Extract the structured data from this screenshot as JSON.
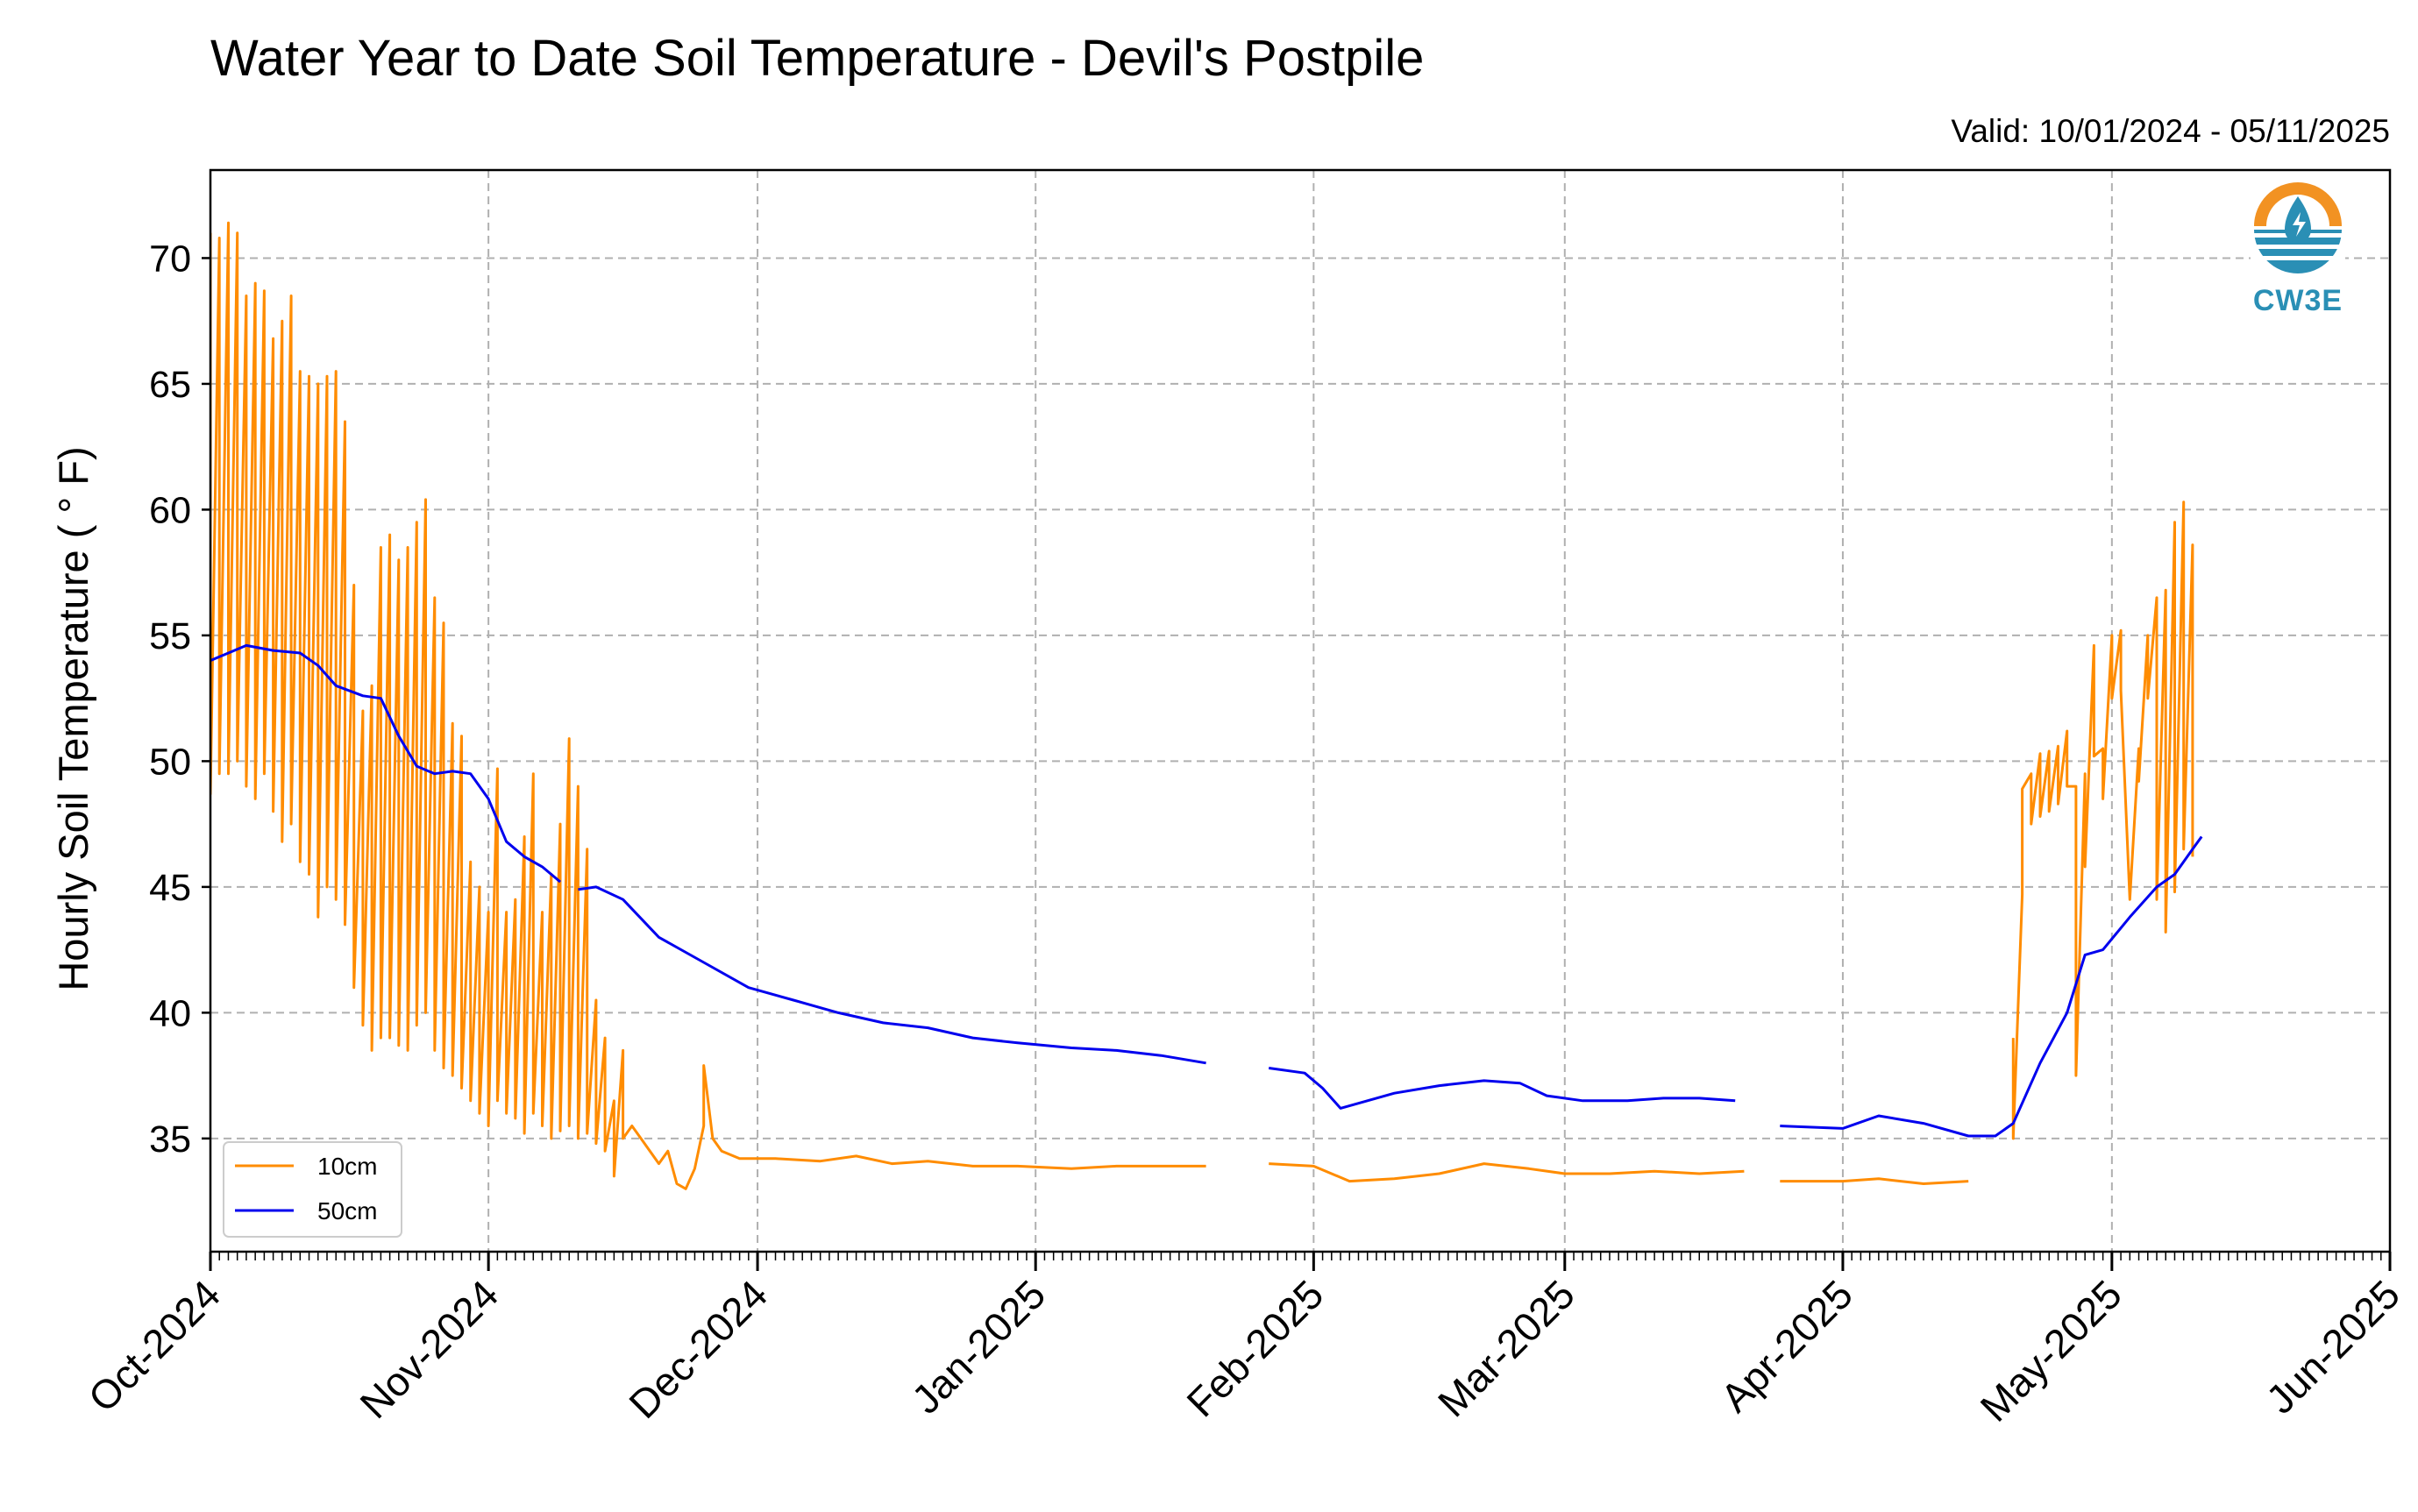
{
  "chart_data": {
    "type": "line",
    "title": "Water Year to Date Soil Temperature - Devil's Postpile",
    "subtitle": "Valid: 10/01/2024 - 05/11/2025",
    "ylabel": "Hourly Soil Temperature ( ° F)",
    "xlabel": "",
    "ylim": [
      30.5,
      73.5
    ],
    "xlim": [
      "2024-10-01",
      "2025-06-01"
    ],
    "yticks": [
      "35",
      "40",
      "45",
      "50",
      "55",
      "60",
      "65",
      "70"
    ],
    "xticks": [
      "Oct-2024",
      "Nov-2024",
      "Dec-2024",
      "Jan-2025",
      "Feb-2025",
      "Mar-2025",
      "Apr-2025",
      "May-2025",
      "Jun-2025"
    ],
    "grid": true,
    "legend_position": "lower-left",
    "logo_text": "CW3E",
    "series": [
      {
        "name": "10cm",
        "color": "#ff8c00",
        "style": "line, strong diurnal swings in October/November, damped near freezing through winter, gap 2025-01-21 to 2025-01-26, fragmented in April, large swings resume late April",
        "points": [
          [
            "2024-10-01",
            71.0
          ],
          [
            "2024-10-01",
            48.7
          ],
          [
            "2024-10-02",
            70.8
          ],
          [
            "2024-10-02",
            49.5
          ],
          [
            "2024-10-03",
            71.4
          ],
          [
            "2024-10-03",
            49.5
          ],
          [
            "2024-10-04",
            71.0
          ],
          [
            "2024-10-04",
            50.0
          ],
          [
            "2024-10-05",
            68.5
          ],
          [
            "2024-10-05",
            49.0
          ],
          [
            "2024-10-06",
            69.0
          ],
          [
            "2024-10-06",
            48.5
          ],
          [
            "2024-10-07",
            68.7
          ],
          [
            "2024-10-07",
            49.5
          ],
          [
            "2024-10-08",
            66.8
          ],
          [
            "2024-10-08",
            48.0
          ],
          [
            "2024-10-09",
            67.5
          ],
          [
            "2024-10-09",
            46.8
          ],
          [
            "2024-10-10",
            68.5
          ],
          [
            "2024-10-10",
            47.5
          ],
          [
            "2024-10-11",
            65.5
          ],
          [
            "2024-10-11",
            46.0
          ],
          [
            "2024-10-12",
            65.3
          ],
          [
            "2024-10-12",
            45.5
          ],
          [
            "2024-10-13",
            65.0
          ],
          [
            "2024-10-13",
            43.8
          ],
          [
            "2024-10-14",
            65.3
          ],
          [
            "2024-10-14",
            45.0
          ],
          [
            "2024-10-15",
            65.5
          ],
          [
            "2024-10-15",
            44.5
          ],
          [
            "2024-10-16",
            63.5
          ],
          [
            "2024-10-16",
            43.5
          ],
          [
            "2024-10-17",
            57.0
          ],
          [
            "2024-10-17",
            41.0
          ],
          [
            "2024-10-18",
            52.0
          ],
          [
            "2024-10-18",
            39.5
          ],
          [
            "2024-10-19",
            53.0
          ],
          [
            "2024-10-19",
            38.5
          ],
          [
            "2024-10-20",
            58.5
          ],
          [
            "2024-10-20",
            39.0
          ],
          [
            "2024-10-21",
            59.0
          ],
          [
            "2024-10-21",
            39.0
          ],
          [
            "2024-10-22",
            58.0
          ],
          [
            "2024-10-22",
            38.7
          ],
          [
            "2024-10-23",
            58.5
          ],
          [
            "2024-10-23",
            38.5
          ],
          [
            "2024-10-24",
            59.5
          ],
          [
            "2024-10-24",
            39.5
          ],
          [
            "2024-10-25",
            60.4
          ],
          [
            "2024-10-25",
            40.0
          ],
          [
            "2024-10-26",
            56.5
          ],
          [
            "2024-10-26",
            38.5
          ],
          [
            "2024-10-27",
            55.5
          ],
          [
            "2024-10-27",
            37.8
          ],
          [
            "2024-10-28",
            51.5
          ],
          [
            "2024-10-28",
            37.5
          ],
          [
            "2024-10-29",
            51.0
          ],
          [
            "2024-10-29",
            37.0
          ],
          [
            "2024-10-30",
            46.0
          ],
          [
            "2024-10-30",
            36.5
          ],
          [
            "2024-10-31",
            45.0
          ],
          [
            "2024-10-31",
            36.0
          ],
          [
            "2024-11-01",
            44.0
          ],
          [
            "2024-11-01",
            35.5
          ],
          [
            "2024-11-02",
            49.7
          ],
          [
            "2024-11-02",
            36.5
          ],
          [
            "2024-11-03",
            44.0
          ],
          [
            "2024-11-03",
            36.0
          ],
          [
            "2024-11-04",
            44.5
          ],
          [
            "2024-11-04",
            35.8
          ],
          [
            "2024-11-05",
            47.0
          ],
          [
            "2024-11-05",
            35.2
          ],
          [
            "2024-11-06",
            49.5
          ],
          [
            "2024-11-06",
            36.0
          ],
          [
            "2024-11-07",
            44.0
          ],
          [
            "2024-11-07",
            35.5
          ],
          [
            "2024-11-08",
            45.5
          ],
          [
            "2024-11-08",
            35.0
          ],
          [
            "2024-11-09",
            47.5
          ],
          [
            "2024-11-09",
            35.3
          ],
          [
            "2024-11-10",
            50.9
          ],
          [
            "2024-11-10",
            35.5
          ],
          [
            "2024-11-11",
            49.0
          ],
          [
            "2024-11-11",
            35.0
          ],
          [
            "2024-11-12",
            46.5
          ],
          [
            "2024-11-12",
            35.2
          ],
          [
            "2024-11-13",
            40.5
          ],
          [
            "2024-11-13",
            34.8
          ],
          [
            "2024-11-14",
            39.0
          ],
          [
            "2024-11-14",
            34.5
          ],
          [
            "2024-11-15",
            36.5
          ],
          [
            "2024-11-15",
            33.5
          ],
          [
            "2024-11-16",
            38.5
          ],
          [
            "2024-11-16",
            35.0
          ],
          [
            "2024-11-17",
            35.5
          ],
          [
            "2024-11-18",
            35.0
          ],
          [
            "2024-11-19",
            34.5
          ],
          [
            "2024-11-20",
            34.0
          ],
          [
            "2024-11-21",
            34.5
          ],
          [
            "2024-11-22",
            33.2
          ],
          [
            "2024-11-23",
            33.0
          ],
          [
            "2024-11-24",
            33.8
          ],
          [
            "2024-11-25",
            35.5
          ],
          [
            "2024-11-25",
            37.9
          ],
          [
            "2024-11-26",
            35.0
          ],
          [
            "2024-11-27",
            34.5
          ],
          [
            "2024-11-29",
            34.2
          ],
          [
            "2024-12-03",
            34.2
          ],
          [
            "2024-12-08",
            34.1
          ],
          [
            "2024-12-12",
            34.3
          ],
          [
            "2024-12-16",
            34.0
          ],
          [
            "2024-12-20",
            34.1
          ],
          [
            "2024-12-25",
            33.9
          ],
          [
            "2024-12-30",
            33.9
          ],
          [
            "2025-01-05",
            33.8
          ],
          [
            "2025-01-10",
            33.9
          ],
          [
            "2025-01-15",
            33.9
          ],
          [
            "2025-01-20",
            33.9
          ],
          [
            "2025-01-21",
            null
          ],
          [
            "2025-01-27",
            34.0
          ],
          [
            "2025-02-01",
            33.9
          ],
          [
            "2025-02-05",
            33.3
          ],
          [
            "2025-02-10",
            33.4
          ],
          [
            "2025-02-15",
            33.6
          ],
          [
            "2025-02-20",
            34.0
          ],
          [
            "2025-02-25",
            33.8
          ],
          [
            "2025-03-01",
            33.6
          ],
          [
            "2025-03-06",
            33.6
          ],
          [
            "2025-03-11",
            33.7
          ],
          [
            "2025-03-16",
            33.6
          ],
          [
            "2025-03-21",
            33.7
          ],
          [
            "2025-03-22",
            null
          ],
          [
            "2025-03-25",
            33.3
          ],
          [
            "2025-04-01",
            33.3
          ],
          [
            "2025-04-05",
            33.4
          ],
          [
            "2025-04-10",
            33.2
          ],
          [
            "2025-04-15",
            33.3
          ],
          [
            "2025-04-17",
            null
          ],
          [
            "2025-04-20",
            39.0
          ],
          [
            "2025-04-20",
            35.0
          ],
          [
            "2025-04-21",
            44.7
          ],
          [
            "2025-04-21",
            48.9
          ],
          [
            "2025-04-22",
            49.5
          ],
          [
            "2025-04-22",
            47.5
          ],
          [
            "2025-04-23",
            50.3
          ],
          [
            "2025-04-23",
            47.8
          ],
          [
            "2025-04-24",
            50.4
          ],
          [
            "2025-04-24",
            48.0
          ],
          [
            "2025-04-25",
            50.6
          ],
          [
            "2025-04-25",
            48.3
          ],
          [
            "2025-04-26",
            51.2
          ],
          [
            "2025-04-26",
            49.0
          ],
          [
            "2025-04-27",
            49.0
          ],
          [
            "2025-04-27",
            37.5
          ],
          [
            "2025-04-28",
            49.5
          ],
          [
            "2025-04-28",
            45.8
          ],
          [
            "2025-04-29",
            54.6
          ],
          [
            "2025-04-29",
            50.2
          ],
          [
            "2025-04-30",
            50.5
          ],
          [
            "2025-04-30",
            48.5
          ],
          [
            "2025-05-01",
            55.0
          ],
          [
            "2025-05-01",
            52.5
          ],
          [
            "2025-05-02",
            55.2
          ],
          [
            "2025-05-02",
            52.8
          ],
          [
            "2025-05-03",
            44.5
          ],
          [
            "2025-05-04",
            50.5
          ],
          [
            "2025-05-04",
            49.2
          ],
          [
            "2025-05-05",
            55.0
          ],
          [
            "2025-05-05",
            52.5
          ],
          [
            "2025-05-06",
            56.5
          ],
          [
            "2025-05-06",
            44.5
          ],
          [
            "2025-05-07",
            56.8
          ],
          [
            "2025-05-07",
            43.2
          ],
          [
            "2025-05-08",
            59.5
          ],
          [
            "2025-05-08",
            44.8
          ],
          [
            "2025-05-09",
            60.3
          ],
          [
            "2025-05-09",
            46.5
          ],
          [
            "2025-05-10",
            58.6
          ],
          [
            "2025-05-10",
            46.2
          ]
        ]
      },
      {
        "name": "50cm",
        "color": "#0000ee",
        "style": "line, slow decline from ~54 to ~38 F, gap 2025-01-21 to 2025-01-26, dotted in April, rising to ~47 F by May 11",
        "points": [
          [
            "2024-10-01",
            54.0
          ],
          [
            "2024-10-03",
            54.3
          ],
          [
            "2024-10-05",
            54.6
          ],
          [
            "2024-10-08",
            54.4
          ],
          [
            "2024-10-11",
            54.3
          ],
          [
            "2024-10-13",
            53.8
          ],
          [
            "2024-10-15",
            53.0
          ],
          [
            "2024-10-18",
            52.6
          ],
          [
            "2024-10-20",
            52.5
          ],
          [
            "2024-10-22",
            51.0
          ],
          [
            "2024-10-24",
            49.8
          ],
          [
            "2024-10-26",
            49.5
          ],
          [
            "2024-10-28",
            49.6
          ],
          [
            "2024-10-30",
            49.5
          ],
          [
            "2024-11-01",
            48.5
          ],
          [
            "2024-11-03",
            46.8
          ],
          [
            "2024-11-05",
            46.2
          ],
          [
            "2024-11-07",
            45.8
          ],
          [
            "2024-11-09",
            45.2
          ],
          [
            "2024-11-10",
            null
          ],
          [
            "2024-11-11",
            44.9
          ],
          [
            "2024-11-13",
            45.0
          ],
          [
            "2024-11-16",
            44.5
          ],
          [
            "2024-11-20",
            43.0
          ],
          [
            "2024-11-25",
            42.0
          ],
          [
            "2024-11-30",
            41.0
          ],
          [
            "2024-12-05",
            40.5
          ],
          [
            "2024-12-10",
            40.0
          ],
          [
            "2024-12-15",
            39.6
          ],
          [
            "2024-12-20",
            39.4
          ],
          [
            "2024-12-25",
            39.0
          ],
          [
            "2024-12-30",
            38.8
          ],
          [
            "2025-01-05",
            38.6
          ],
          [
            "2025-01-10",
            38.5
          ],
          [
            "2025-01-15",
            38.3
          ],
          [
            "2025-01-20",
            38.0
          ],
          [
            "2025-01-21",
            null
          ],
          [
            "2025-01-27",
            37.8
          ],
          [
            "2025-01-31",
            37.6
          ],
          [
            "2025-02-02",
            37.0
          ],
          [
            "2025-02-04",
            36.2
          ],
          [
            "2025-02-06",
            36.4
          ],
          [
            "2025-02-10",
            36.8
          ],
          [
            "2025-02-15",
            37.1
          ],
          [
            "2025-02-20",
            37.3
          ],
          [
            "2025-02-24",
            37.2
          ],
          [
            "2025-02-27",
            36.7
          ],
          [
            "2025-03-03",
            36.5
          ],
          [
            "2025-03-08",
            36.5
          ],
          [
            "2025-03-12",
            36.6
          ],
          [
            "2025-03-16",
            36.6
          ],
          [
            "2025-03-20",
            36.5
          ],
          [
            "2025-03-22",
            null
          ],
          [
            "2025-03-25",
            35.5
          ],
          [
            "2025-04-01",
            35.4
          ],
          [
            "2025-04-05",
            35.9
          ],
          [
            "2025-04-10",
            35.6
          ],
          [
            "2025-04-15",
            35.1
          ],
          [
            "2025-04-18",
            35.1
          ],
          [
            "2025-04-20",
            35.6
          ],
          [
            "2025-04-23",
            38.0
          ],
          [
            "2025-04-26",
            40.0
          ],
          [
            "2025-04-28",
            42.3
          ],
          [
            "2025-04-30",
            42.5
          ],
          [
            "2025-05-03",
            43.8
          ],
          [
            "2025-05-06",
            45.0
          ],
          [
            "2025-05-08",
            45.5
          ],
          [
            "2025-05-10",
            46.5
          ],
          [
            "2025-05-11",
            47.0
          ]
        ]
      }
    ]
  }
}
